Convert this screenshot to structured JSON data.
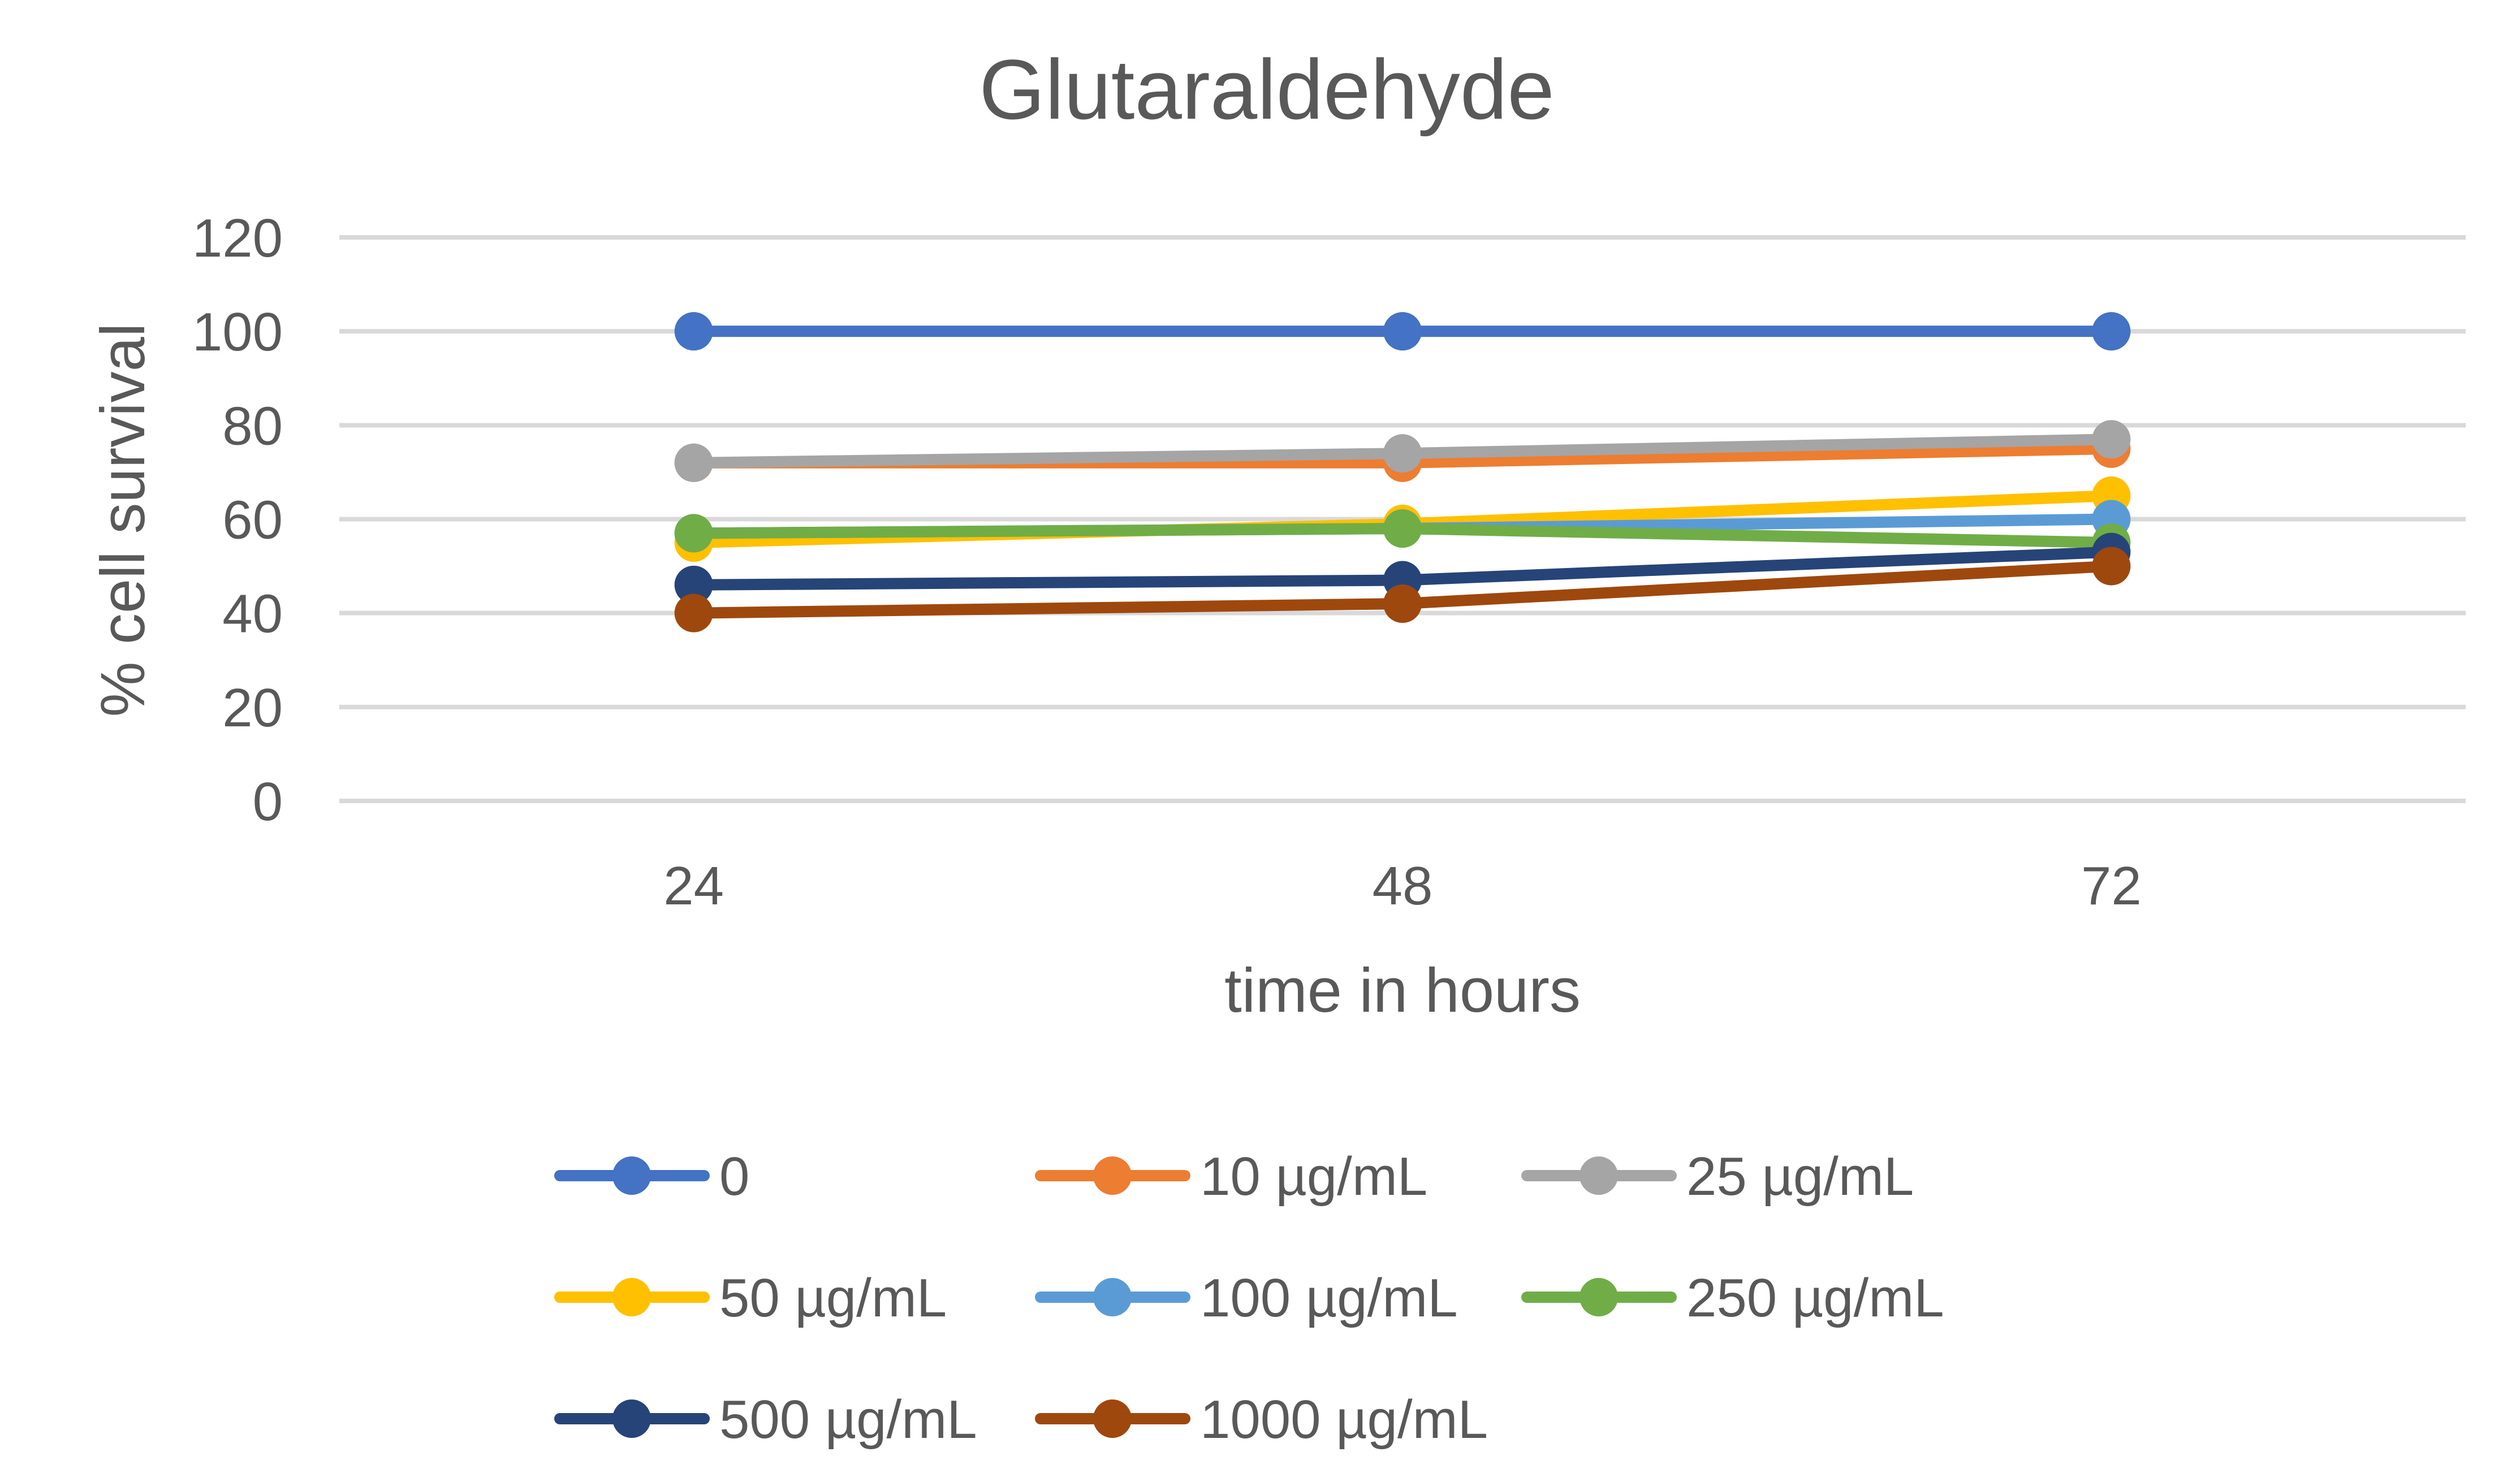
{
  "chart_data": {
    "type": "line",
    "title": "Glutaraldehyde",
    "xlabel": "time in hours",
    "ylabel": "% cell survival",
    "categories": [
      "24",
      "48",
      "72"
    ],
    "ylim": [
      0,
      120
    ],
    "yticks": [
      0,
      20,
      40,
      60,
      80,
      100,
      120
    ],
    "grid": true,
    "legend_position": "bottom",
    "series": [
      {
        "name": "0",
        "color": "#4472C4",
        "values": [
          100,
          100,
          100
        ]
      },
      {
        "name": "10 µg/mL",
        "color": "#ED7D31",
        "values": [
          72,
          72,
          75
        ]
      },
      {
        "name": "25 µg/mL",
        "color": "#A5A5A5",
        "values": [
          72,
          74,
          77
        ]
      },
      {
        "name": "50 µg/mL",
        "color": "#FFC000",
        "values": [
          55,
          59,
          65
        ]
      },
      {
        "name": "100 µg/mL",
        "color": "#5B9BD5",
        "values": [
          57,
          58,
          60
        ]
      },
      {
        "name": "250 µg/mL",
        "color": "#70AD47",
        "values": [
          57,
          58,
          55
        ]
      },
      {
        "name": "500 µg/mL",
        "color": "#264478",
        "values": [
          46,
          47,
          53
        ]
      },
      {
        "name": "1000 µg/mL",
        "color": "#9E480E",
        "values": [
          40,
          42,
          50
        ]
      }
    ]
  }
}
